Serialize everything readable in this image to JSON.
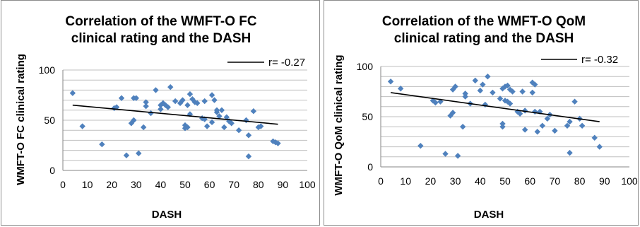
{
  "colors": {
    "point": "#4f81bd",
    "trend": "#000000",
    "grid": "#bfbfbf"
  },
  "chart_data": [
    {
      "type": "scatter",
      "title_lines": [
        "Correlation of the WMFT-O FC",
        "clinical rating and the DASH"
      ],
      "xlabel": "DASH",
      "ylabel": "WMFT-O FC clinical rating",
      "xlim": [
        0,
        100
      ],
      "ylim": [
        0,
        100
      ],
      "xticks": [
        "0",
        "10",
        "20",
        "30",
        "40",
        "50",
        "60",
        "70",
        "80",
        "90",
        "100"
      ],
      "yticks": [
        "0",
        "50",
        "100"
      ],
      "grid": true,
      "legend_position": "top-right",
      "legend_label": "r= -0.27",
      "trendline": {
        "x": [
          4,
          88
        ],
        "y": [
          65,
          46
        ]
      },
      "points": [
        [
          4,
          77
        ],
        [
          8,
          44
        ],
        [
          16,
          26
        ],
        [
          21,
          62
        ],
        [
          22,
          63
        ],
        [
          24,
          72
        ],
        [
          26,
          15
        ],
        [
          28,
          47
        ],
        [
          29,
          50
        ],
        [
          29,
          72
        ],
        [
          30,
          72
        ],
        [
          31,
          17
        ],
        [
          33,
          43
        ],
        [
          34,
          68
        ],
        [
          34,
          64
        ],
        [
          36,
          57
        ],
        [
          38,
          80
        ],
        [
          40,
          65
        ],
        [
          40,
          61
        ],
        [
          41,
          67
        ],
        [
          42,
          65
        ],
        [
          43,
          63
        ],
        [
          44,
          83
        ],
        [
          46,
          69
        ],
        [
          48,
          67
        ],
        [
          49,
          70
        ],
        [
          50,
          45
        ],
        [
          50,
          42
        ],
        [
          51,
          43
        ],
        [
          51,
          65
        ],
        [
          52,
          76
        ],
        [
          52,
          56
        ],
        [
          53,
          71
        ],
        [
          54,
          68
        ],
        [
          55,
          67
        ],
        [
          57,
          52
        ],
        [
          58,
          51
        ],
        [
          58,
          69
        ],
        [
          59,
          44
        ],
        [
          61,
          48
        ],
        [
          61,
          75
        ],
        [
          62,
          70
        ],
        [
          63,
          60
        ],
        [
          63,
          58
        ],
        [
          64,
          54
        ],
        [
          65,
          60
        ],
        [
          66,
          43
        ],
        [
          67,
          53
        ],
        [
          68,
          49
        ],
        [
          69,
          47
        ],
        [
          72,
          40
        ],
        [
          75,
          50
        ],
        [
          76,
          14
        ],
        [
          76,
          35
        ],
        [
          78,
          59
        ],
        [
          80,
          43
        ],
        [
          81,
          44
        ],
        [
          86,
          29
        ],
        [
          87,
          28
        ],
        [
          88,
          27
        ]
      ]
    },
    {
      "type": "scatter",
      "title_lines": [
        "Correlation of the WMFT-O QoM",
        "clinical rating and the DASH"
      ],
      "xlabel": "DASH",
      "ylabel": "WMFT-O QoM clinical rating",
      "xlim": [
        0,
        100
      ],
      "ylim": [
        0,
        100
      ],
      "xticks": [
        "0",
        "10",
        "20",
        "30",
        "40",
        "50",
        "60",
        "70",
        "80",
        "90",
        "100"
      ],
      "yticks": [
        "0",
        "50",
        "100"
      ],
      "grid": true,
      "legend_position": "top-right",
      "legend_label": "r= -0.32",
      "trendline": {
        "x": [
          4,
          88
        ],
        "y": [
          74,
          45
        ]
      },
      "points": [
        [
          4,
          85
        ],
        [
          8,
          78
        ],
        [
          16,
          21
        ],
        [
          21,
          66
        ],
        [
          22,
          64
        ],
        [
          24,
          65
        ],
        [
          26,
          13
        ],
        [
          28,
          51
        ],
        [
          29,
          77
        ],
        [
          29,
          54
        ],
        [
          30,
          80
        ],
        [
          31,
          11
        ],
        [
          33,
          40
        ],
        [
          34,
          73
        ],
        [
          34,
          70
        ],
        [
          36,
          63
        ],
        [
          38,
          86
        ],
        [
          40,
          76
        ],
        [
          41,
          82
        ],
        [
          42,
          62
        ],
        [
          43,
          90
        ],
        [
          45,
          74
        ],
        [
          48,
          68
        ],
        [
          49,
          78
        ],
        [
          49,
          43
        ],
        [
          49,
          40
        ],
        [
          50,
          66
        ],
        [
          50,
          80
        ],
        [
          51,
          81
        ],
        [
          51,
          65
        ],
        [
          52,
          63
        ],
        [
          52,
          77
        ],
        [
          53,
          75
        ],
        [
          55,
          55
        ],
        [
          56,
          53
        ],
        [
          57,
          75
        ],
        [
          58,
          37
        ],
        [
          58,
          56
        ],
        [
          61,
          84
        ],
        [
          61,
          74
        ],
        [
          62,
          82
        ],
        [
          62,
          55
        ],
        [
          63,
          35
        ],
        [
          64,
          55
        ],
        [
          65,
          41
        ],
        [
          67,
          48
        ],
        [
          68,
          52
        ],
        [
          70,
          36
        ],
        [
          75,
          41
        ],
        [
          76,
          45
        ],
        [
          76,
          14
        ],
        [
          78,
          65
        ],
        [
          80,
          48
        ],
        [
          81,
          41
        ],
        [
          86,
          29
        ],
        [
          88,
          20
        ]
      ]
    }
  ]
}
